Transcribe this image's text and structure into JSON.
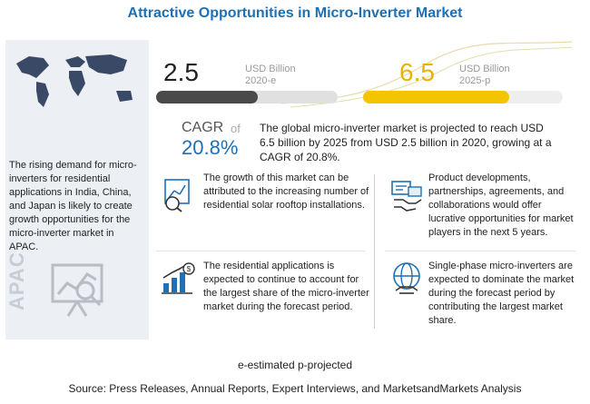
{
  "title": "Attractive Opportunities in Micro-Inverter Market",
  "region": "APAC",
  "left_text": "The rising demand for micro-inverters for residential applications in India, China, and Japan is likely to create growth opportunities for the micro-inverter market in APAC.",
  "stats": {
    "left": {
      "value": "2.5",
      "unit": "USD Billion",
      "year": "2020-e",
      "fraction": 0.56
    },
    "right": {
      "value": "6.5",
      "unit": "USD Billion",
      "year": "2025-p",
      "fraction": 0.73
    }
  },
  "cagr": {
    "label": "CAGR",
    "of": "of",
    "value": "20.8%",
    "description": "The global micro-inverter market is projected to reach USD 6.5 billion by 2025 from USD 2.5 billion in 2020, growing at a CAGR of 20.8%."
  },
  "cards": [
    {
      "icon": "solar-growth-icon",
      "text": "The growth of this market can be attributed to the increasing number of residential solar rooftop installations."
    },
    {
      "icon": "partnership-icon",
      "text": "Product developments, partnerships, agreements, and collaborations would offer lucrative opportunities for market players in the next 5 years."
    },
    {
      "icon": "rising-chart-icon",
      "text": "The residential applications is expected to continue to account for the largest share of the micro-inverter market during the forecast period."
    },
    {
      "icon": "globe-icon",
      "text": "Single-phase micro-inverters are expected to dominate the market during the forecast period by contributing the largest market share."
    }
  ],
  "footnote": "e-estimated p-projected",
  "source": "Source: Press Releases, Annual Reports, Expert Interviews, and MarketsandMarkets Analysis",
  "colors": {
    "title": "#1f6fb5",
    "accent_yellow": "#f5c400",
    "dark_bar": "#4a4a4a",
    "cagr": "#1f6fb5"
  }
}
